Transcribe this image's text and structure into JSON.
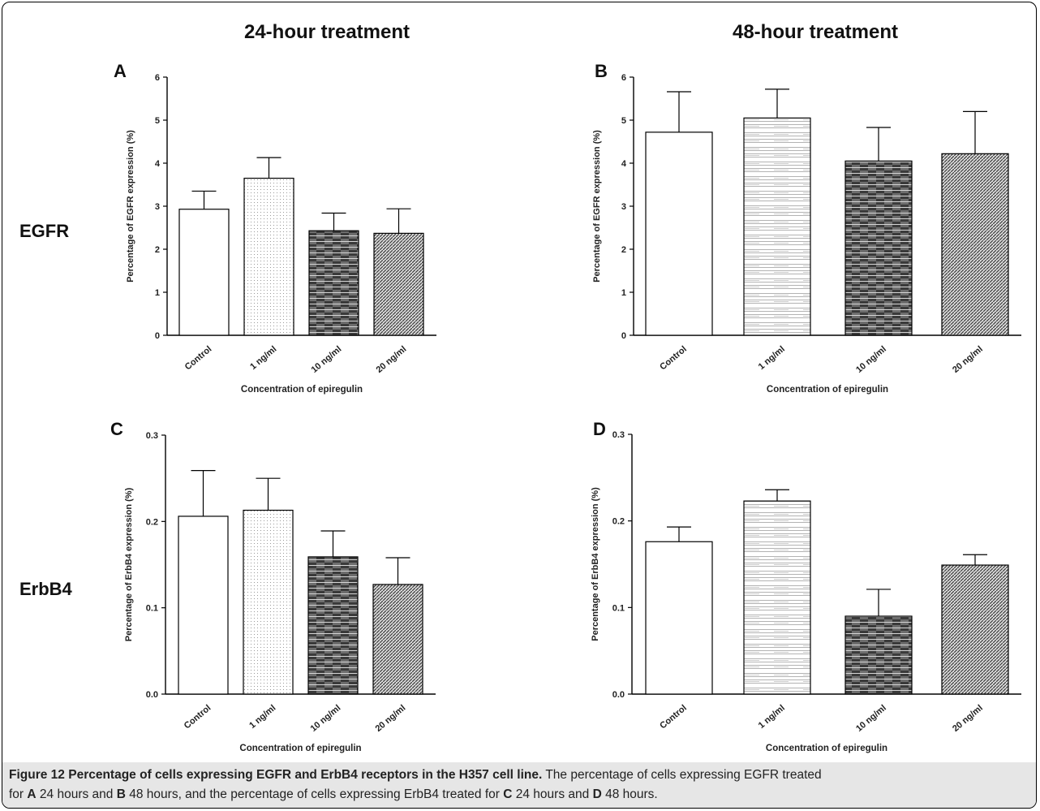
{
  "column_headers": [
    "24-hour treatment",
    "48-hour treatment"
  ],
  "row_labels": [
    "EGFR",
    "ErbB4"
  ],
  "chart_data": [
    {
      "panel": "A",
      "type": "bar",
      "categories": [
        "Control",
        "1 ng/ml",
        "10 ng/ml",
        "20 ng/ml"
      ],
      "values": [
        2.93,
        3.65,
        2.43,
        2.37
      ],
      "errors": [
        0.42,
        0.48,
        0.41,
        0.57
      ],
      "ylabel": "Percentage of EGFR expression (%)",
      "xlabel": "Concentration of epiregulin",
      "ylim": [
        0,
        6
      ],
      "yticks": [
        "0",
        "1",
        "2",
        "3",
        "4",
        "5",
        "6"
      ],
      "grid": false
    },
    {
      "panel": "B",
      "type": "bar",
      "categories": [
        "Control",
        "1 ng/ml",
        "10 ng/ml",
        "20 ng/ml"
      ],
      "values": [
        4.72,
        5.05,
        4.05,
        4.22
      ],
      "errors": [
        0.94,
        0.67,
        0.78,
        0.98
      ],
      "ylabel": "Percentage of EGFR expression (%)",
      "xlabel": "Concentration of epiregulin",
      "ylim": [
        0,
        6
      ],
      "yticks": [
        "0",
        "1",
        "2",
        "3",
        "4",
        "5",
        "6"
      ],
      "grid": false
    },
    {
      "panel": "C",
      "type": "bar",
      "categories": [
        "Control",
        "1 ng/ml",
        "10 ng/ml",
        "20 ng/ml"
      ],
      "values": [
        0.206,
        0.213,
        0.159,
        0.127
      ],
      "errors": [
        0.053,
        0.037,
        0.03,
        0.031
      ],
      "ylabel": "Percentage of ErbB4 expression (%)",
      "xlabel": "Concentration of epiregulin",
      "ylim": [
        0,
        0.3
      ],
      "yticks": [
        "0.0",
        "0.1",
        "0.2",
        "0.3"
      ],
      "grid": false
    },
    {
      "panel": "D",
      "type": "bar",
      "categories": [
        "Control",
        "1 ng/ml",
        "10 ng/ml",
        "20 ng/ml"
      ],
      "values": [
        0.176,
        0.223,
        0.09,
        0.149
      ],
      "errors": [
        0.017,
        0.013,
        0.031,
        0.012
      ],
      "ylabel": "Percentage of ErbB4 expression (%)",
      "xlabel": "Concentration of epiregulin",
      "ylim": [
        0,
        0.3
      ],
      "yticks": [
        "0.0",
        "0.1",
        "0.2",
        "0.3"
      ],
      "grid": false
    }
  ],
  "caption": {
    "label": "Figure 12",
    "title": "Percentage of cells expressing EGFR and ErbB4 receptors in the H357 cell line.",
    "text_1": "The percentage of cells expressing EGFR treated",
    "text_2": "for",
    "a": "A",
    "text_3": "24 hours and",
    "b": "B",
    "text_4": "48 hours, and the percentage of cells expressing ErbB4 treated for",
    "c": "C",
    "text_5": "24 hours and",
    "d": "D",
    "text_6": "48 hours."
  }
}
